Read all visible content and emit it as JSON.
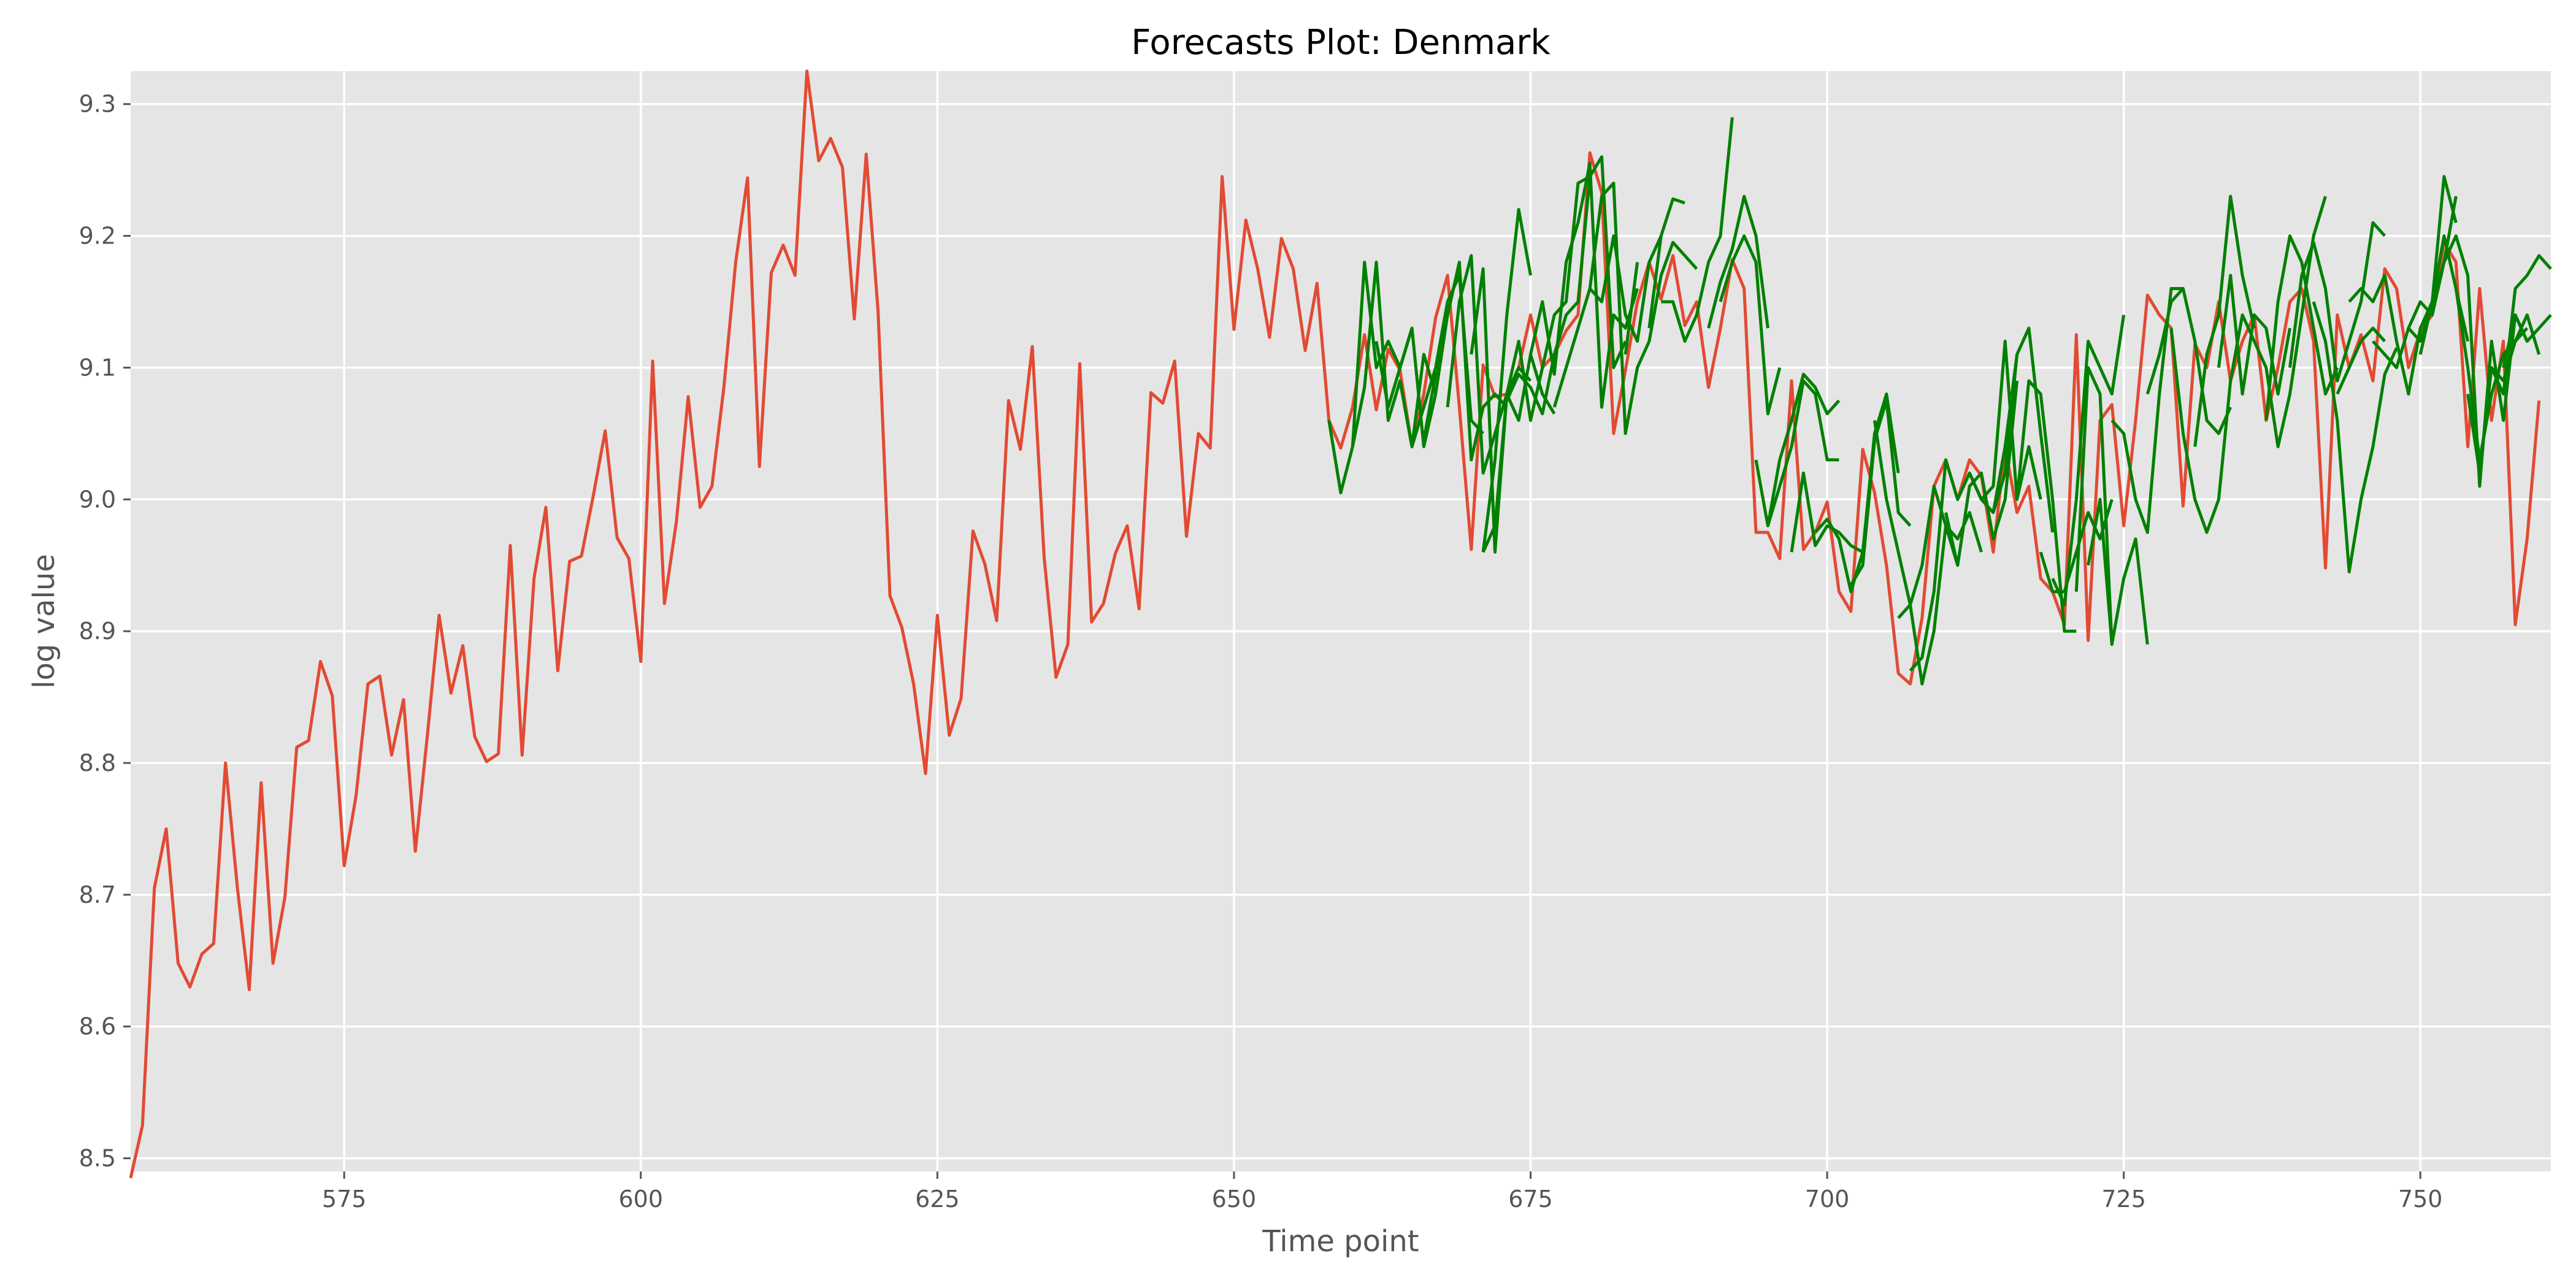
{
  "chart_data": {
    "type": "line",
    "title": "Forecasts Plot: Denmark",
    "xlabel": "Time point",
    "ylabel": "log value",
    "xlim": [
      557,
      761
    ],
    "ylim": [
      8.49,
      9.325
    ],
    "xticks": [
      575,
      600,
      625,
      650,
      675,
      700,
      725,
      750
    ],
    "xtick_labels": [
      "575",
      "600",
      "625",
      "650",
      "675",
      "700",
      "725",
      "750"
    ],
    "yticks": [
      8.5,
      8.6,
      8.7,
      8.8,
      8.9,
      9.0,
      9.1,
      9.2,
      9.3
    ],
    "ytick_labels": [
      "8.5",
      "8.6",
      "8.7",
      "8.8",
      "8.9",
      "9.0",
      "9.1",
      "9.2",
      "9.3"
    ],
    "grid": true,
    "colors": {
      "background": "#e5e5e5",
      "grid": "#ffffff",
      "actual": "#e24a33",
      "forecast": "#008000"
    },
    "actual": {
      "x_start": 557,
      "values": [
        8.485,
        8.525,
        8.705,
        8.75,
        8.648,
        8.63,
        8.655,
        8.663,
        8.8,
        8.705,
        8.628,
        8.785,
        8.648,
        8.698,
        8.812,
        8.817,
        8.877,
        8.851,
        8.722,
        8.775,
        8.86,
        8.866,
        8.806,
        8.848,
        8.733,
        8.82,
        8.912,
        8.853,
        8.889,
        8.82,
        8.801,
        8.807,
        8.965,
        8.806,
        8.94,
        8.994,
        8.87,
        8.953,
        8.957,
        9.003,
        9.052,
        8.971,
        8.955,
        8.877,
        9.105,
        8.921,
        8.983,
        9.078,
        8.994,
        9.01,
        9.085,
        9.18,
        9.244,
        9.025,
        9.172,
        9.193,
        9.17,
        9.325,
        9.257,
        9.274,
        9.252,
        9.137,
        9.262,
        9.143,
        8.927,
        8.903,
        8.86,
        8.792,
        8.912,
        8.821,
        8.849,
        8.976,
        8.951,
        8.908,
        9.075,
        9.038,
        9.116,
        8.956,
        8.865,
        8.89,
        9.103,
        8.907,
        8.921,
        8.959,
        8.98,
        8.917,
        9.081,
        9.073,
        9.105,
        8.972,
        9.05,
        9.039,
        9.245,
        9.129,
        9.212,
        9.175,
        9.123,
        9.198,
        9.175,
        9.113,
        9.164,
        9.06,
        9.039,
        9.07,
        9.125,
        9.068,
        9.114,
        9.098,
        9.04,
        9.08,
        9.138,
        9.17,
        9.07,
        8.962,
        9.102,
        9.078,
        9.08,
        9.1,
        9.14,
        9.1,
        9.11,
        9.128,
        9.14,
        9.263,
        9.233,
        9.05,
        9.098,
        9.15,
        9.18,
        9.152,
        9.185,
        9.132,
        9.15,
        9.085,
        9.13,
        9.182,
        9.16,
        8.975,
        8.975,
        8.955,
        9.09,
        8.962,
        8.975,
        8.998,
        8.93,
        8.915,
        9.038,
        9.005,
        8.95,
        8.868,
        8.86,
        8.91,
        9.01,
        9.03,
        9.0,
        9.03,
        9.018,
        8.96,
        9.04,
        8.99,
        9.01,
        8.94,
        8.93,
        8.905,
        9.125,
        8.893,
        9.06,
        9.072,
        8.98,
        9.06,
        9.155,
        9.14,
        9.13,
        8.995,
        9.118,
        9.1,
        9.15,
        9.09,
        9.12,
        9.14,
        9.06,
        9.1,
        9.15,
        9.16,
        9.12,
        8.948,
        9.14,
        9.1,
        9.125,
        9.09,
        9.175,
        9.16,
        9.1,
        9.128,
        9.14,
        9.195,
        9.18,
        9.04,
        9.16,
        9.06,
        9.12,
        8.905,
        8.97,
        9.075
      ]
    },
    "forecasts": [
      {
        "x_start": 658,
        "values": [
          9.06,
          9.005,
          9.04,
          9.18,
          9.1,
          9.12,
          9.1,
          9.13
        ]
      },
      {
        "x_start": 660,
        "values": [
          9.04,
          9.085,
          9.18,
          9.06,
          9.09,
          9.04,
          9.11,
          9.08
        ]
      },
      {
        "x_start": 662,
        "values": [
          9.12,
          9.07,
          9.1,
          9.13,
          9.04,
          9.08,
          9.14,
          9.18
        ]
      },
      {
        "x_start": 664,
        "values": [
          9.09,
          9.04,
          9.07,
          9.1,
          9.15,
          9.17,
          9.06,
          9.05
        ]
      },
      {
        "x_start": 666,
        "values": [
          9.045,
          9.095,
          9.14,
          9.18,
          9.03,
          9.07,
          9.08,
          9.07
        ]
      },
      {
        "x_start": 668,
        "values": [
          9.07,
          9.15,
          9.185,
          9.02,
          9.05,
          9.08,
          9.1,
          9.09
        ]
      },
      {
        "x_start": 670,
        "values": [
          9.11,
          9.175,
          8.96,
          9.08,
          9.06,
          9.11,
          9.08,
          9.065
        ]
      },
      {
        "x_start": 671,
        "values": [
          8.96,
          9.03,
          9.14,
          9.22,
          9.17
        ]
      },
      {
        "x_start": 671,
        "values": [
          8.96,
          8.98,
          9.08,
          9.12,
          9.06,
          9.1,
          9.14,
          9.15,
          9.24,
          9.245
        ]
      },
      {
        "x_start": 673,
        "values": [
          9.075,
          9.095,
          9.085,
          9.065,
          9.11,
          9.14,
          9.15,
          9.245,
          9.26,
          9.1,
          9.12
        ]
      },
      {
        "x_start": 675,
        "values": [
          9.11,
          9.15,
          9.095,
          9.18,
          9.21,
          9.255,
          9.07,
          9.14,
          9.13,
          9.16
        ]
      },
      {
        "x_start": 677,
        "values": [
          9.07,
          9.1,
          9.13,
          9.16,
          9.15,
          9.2,
          9.14,
          9.12,
          9.18,
          9.2
        ]
      },
      {
        "x_start": 680,
        "values": [
          9.16,
          9.23,
          9.24,
          9.05,
          9.1,
          9.12,
          9.17,
          9.195,
          9.185,
          9.175
        ]
      },
      {
        "x_start": 683,
        "values": [
          9.11,
          9.18
        ]
      },
      {
        "x_start": 685,
        "values": [
          9.13,
          9.2,
          9.228,
          9.225
        ]
      },
      {
        "x_start": 686,
        "values": [
          9.15,
          9.15,
          9.12,
          9.14,
          9.18,
          9.2,
          9.29
        ]
      },
      {
        "x_start": 690,
        "values": [
          9.13,
          9.165,
          9.19,
          9.23,
          9.2,
          9.13
        ]
      },
      {
        "x_start": 691,
        "values": [
          9.15,
          9.18,
          9.2,
          9.18,
          9.065,
          9.1
        ]
      },
      {
        "x_start": 694,
        "values": [
          9.03,
          8.98,
          9.03,
          9.06,
          9.095,
          9.085,
          9.065,
          9.075
        ]
      },
      {
        "x_start": 695,
        "values": [
          8.98,
          9.01,
          9.04,
          9.09,
          9.08,
          9.03,
          9.03
        ]
      },
      {
        "x_start": 697,
        "values": [
          8.96,
          9.02,
          8.965,
          8.98,
          8.975,
          8.965,
          8.96
        ]
      },
      {
        "x_start": 699,
        "values": [
          8.975,
          8.985,
          8.97,
          8.93,
          8.96,
          9.05,
          9.08,
          9.02
        ]
      },
      {
        "x_start": 702,
        "values": [
          8.935,
          8.95,
          9.045,
          9.075,
          8.99,
          8.98
        ]
      },
      {
        "x_start": 704,
        "values": [
          9.06,
          9.0,
          8.96,
          8.92,
          8.86,
          8.9,
          8.98,
          8.95
        ]
      },
      {
        "x_start": 706,
        "values": [
          8.91,
          8.92,
          8.95,
          9.01,
          8.98,
          8.97,
          8.99,
          8.96
        ]
      },
      {
        "x_start": 707,
        "values": [
          8.87,
          8.88,
          8.93,
          9.03,
          9.0,
          9.02,
          9.0,
          8.99,
          9.04,
          9.11
        ]
      },
      {
        "x_start": 710,
        "values": [
          8.99,
          8.95,
          9.01,
          9.02,
          8.97,
          9.0,
          9.09
        ]
      },
      {
        "x_start": 712,
        "values": [
          9.02,
          9.0,
          9.01,
          9.12,
          9.0,
          9.04,
          9.0
        ]
      },
      {
        "x_start": 714,
        "values": [
          8.99,
          9.02,
          9.11,
          9.13,
          9.05,
          8.975
        ]
      },
      {
        "x_start": 716,
        "values": [
          9.0,
          9.09,
          9.08,
          9.0,
          8.9,
          8.9
        ]
      },
      {
        "x_start": 718,
        "values": [
          8.96,
          8.93,
          8.93,
          8.96,
          8.99,
          8.97,
          9.0
        ]
      },
      {
        "x_start": 719,
        "values": [
          8.94,
          8.92,
          9.0,
          9.12,
          9.1,
          9.08,
          9.14
        ]
      },
      {
        "x_start": 721,
        "values": [
          8.93,
          9.1,
          9.08,
          8.89
        ]
      },
      {
        "x_start": 722,
        "values": [
          8.95,
          9.0,
          8.89,
          8.94,
          8.97,
          8.89
        ]
      },
      {
        "x_start": 724,
        "values": [
          9.06,
          9.05,
          9.0,
          8.975,
          9.08,
          9.16,
          9.16
        ]
      },
      {
        "x_start": 727,
        "values": [
          9.08,
          9.11,
          9.15,
          9.16,
          9.12,
          9.06,
          9.05,
          9.07
        ]
      },
      {
        "x_start": 729,
        "values": [
          9.13,
          9.05,
          9.0,
          8.975,
          9.0,
          9.09
        ]
      },
      {
        "x_start": 731,
        "values": [
          9.04,
          9.11,
          9.14,
          9.23,
          9.17,
          9.13
        ]
      },
      {
        "x_start": 733,
        "values": [
          9.1,
          9.17,
          9.08,
          9.14,
          9.13,
          9.08,
          9.13
        ]
      },
      {
        "x_start": 734,
        "values": [
          9.09,
          9.14,
          9.12,
          9.1,
          9.04,
          9.08,
          9.14,
          9.2,
          9.23
        ]
      },
      {
        "x_start": 737,
        "values": [
          9.06,
          9.15,
          9.2,
          9.18,
          9.13,
          9.08,
          9.1
        ]
      },
      {
        "x_start": 739,
        "values": [
          9.1,
          9.17,
          9.195,
          9.16,
          9.09,
          9.12,
          9.15,
          9.21,
          9.2
        ]
      },
      {
        "x_start": 741,
        "values": [
          9.15,
          9.12,
          9.06,
          8.945,
          9.0,
          9.04,
          9.095,
          9.115
        ]
      },
      {
        "x_start": 743,
        "values": [
          9.08,
          9.1,
          9.12,
          9.13,
          9.12
        ]
      },
      {
        "x_start": 744,
        "values": [
          9.15,
          9.16,
          9.15,
          9.17,
          9.12,
          9.08,
          9.13,
          9.15,
          9.245,
          9.21
        ]
      },
      {
        "x_start": 746,
        "values": [
          9.12,
          9.11,
          9.1,
          9.13,
          9.12,
          9.15,
          9.2,
          9.16,
          9.12
        ]
      },
      {
        "x_start": 749,
        "values": [
          9.13,
          9.15,
          9.14,
          9.18,
          9.23
        ]
      },
      {
        "x_start": 750,
        "values": [
          9.11,
          9.15,
          9.18,
          9.2,
          9.17,
          9.01,
          9.12,
          9.06,
          9.14,
          9.12
        ]
      },
      {
        "x_start": 753,
        "values": [
          9.16,
          9.1,
          9.03,
          9.08,
          9.11,
          9.12,
          9.13
        ]
      },
      {
        "x_start": 754,
        "values": [
          9.08,
          9.02,
          9.1,
          9.09,
          9.12,
          9.14,
          9.11
        ]
      },
      {
        "x_start": 756,
        "values": [
          9.1,
          9.08,
          9.16,
          9.17,
          9.185,
          9.175
        ]
      },
      {
        "x_start": 757,
        "values": [
          9.1,
          9.14,
          9.12,
          9.13,
          9.14
        ]
      }
    ]
  }
}
